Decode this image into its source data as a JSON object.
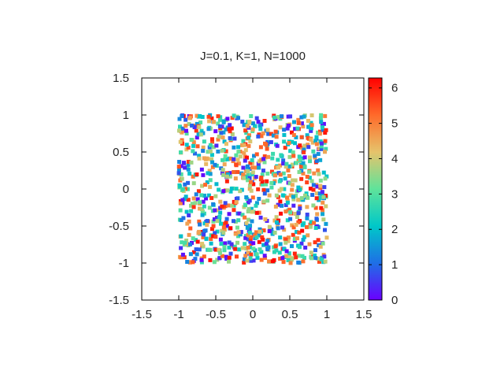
{
  "chart_data": {
    "type": "scatter",
    "title": "J=0.1, K=1, N=1000",
    "xlabel": "",
    "ylabel": "",
    "xlim": [
      -1.5,
      1.5
    ],
    "ylim": [
      -1.5,
      1.5
    ],
    "x_ticks": [
      "-1.5",
      "-1",
      "-0.5",
      "0",
      "0.5",
      "1",
      "1.5"
    ],
    "y_ticks": [
      "-1.5",
      "-1",
      "-0.5",
      "0",
      "0.5",
      "1",
      "1.5"
    ],
    "grid": false,
    "point_count": 1000,
    "point_x_range": [
      -1,
      1
    ],
    "point_y_range": [
      -1,
      1
    ],
    "color_dimension": "phase",
    "colorbar": {
      "range": [
        0,
        6.2832
      ],
      "ticks": [
        "0",
        "1",
        "2",
        "3",
        "4",
        "5",
        "6"
      ],
      "colormap": [
        "#6a00ff",
        "#1e6fe6",
        "#00c8c8",
        "#5fe39a",
        "#e6c36b",
        "#ff6a2a",
        "#ff0000"
      ]
    }
  }
}
